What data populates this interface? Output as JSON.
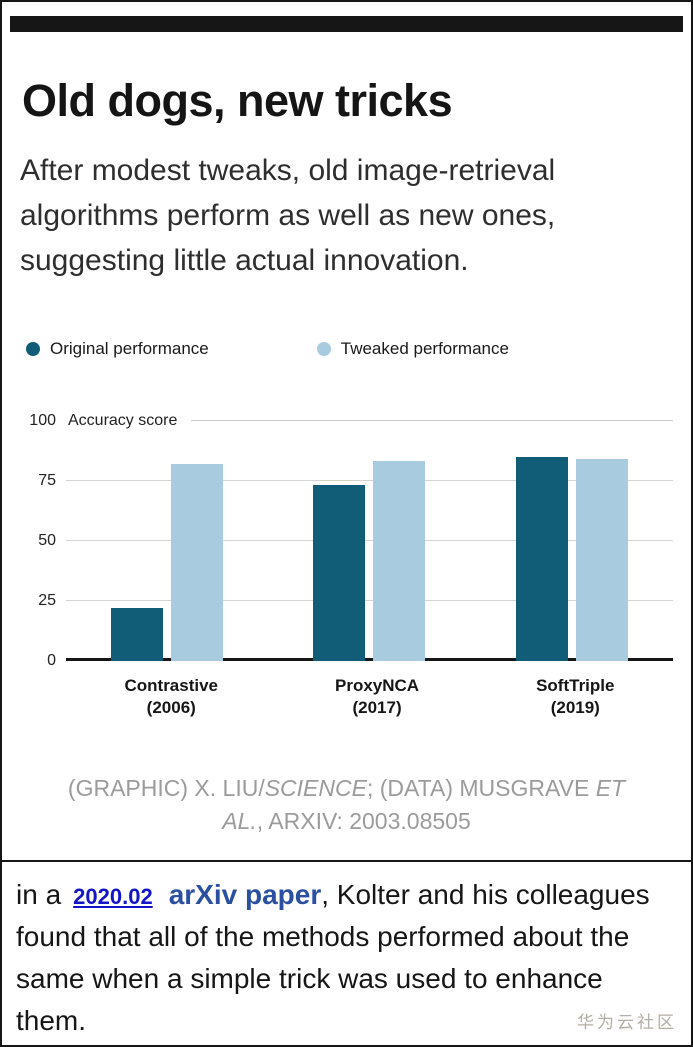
{
  "header": {
    "title": "Old dogs, new tricks",
    "subtitle": "After modest tweaks, old image-retrieval algorithms perform as well as new ones, suggesting little actual innovation."
  },
  "legend": [
    {
      "label": "Original performance",
      "color": "#115c77"
    },
    {
      "label": "Tweaked performance",
      "color": "#a9cbe0"
    }
  ],
  "chart_data": {
    "type": "bar",
    "title": "Old dogs, new tricks",
    "categories": [
      "Contrastive (2006)",
      "ProxyNCA (2017)",
      "SoftTriple (2019)"
    ],
    "series": [
      {
        "name": "Original performance",
        "color": "#115c77",
        "values": [
          22,
          73,
          85
        ]
      },
      {
        "name": "Tweaked performance",
        "color": "#a9cbe0",
        "values": [
          82,
          83,
          84
        ]
      }
    ],
    "xlabel": "",
    "ylabel": "Accuracy score",
    "yticks": [
      0,
      25,
      50,
      75,
      100
    ],
    "ylim": [
      0,
      100
    ],
    "grid": true,
    "legend_position": "top"
  },
  "caption": {
    "parts": [
      {
        "text": "(GRAPHIC) X. LIU/",
        "italic": false
      },
      {
        "text": "SCIENCE",
        "italic": true
      },
      {
        "text": "; (DATA) MUSGRAVE ",
        "italic": false
      },
      {
        "text": "ET AL.",
        "italic": true
      },
      {
        "text": ", ARXIV: 2003.08505",
        "italic": false
      }
    ]
  },
  "article": {
    "prefix": "in a",
    "date_link": "2020.02",
    "paper_link": "arXiv paper",
    "rest": ", Kolter and his colleagues found that all of the methods performed about the same when a simple trick was used to enhance them.",
    "link_color": "#2b50a1",
    "date_link_color": "#1414c8"
  },
  "watermark": "华为云社区"
}
